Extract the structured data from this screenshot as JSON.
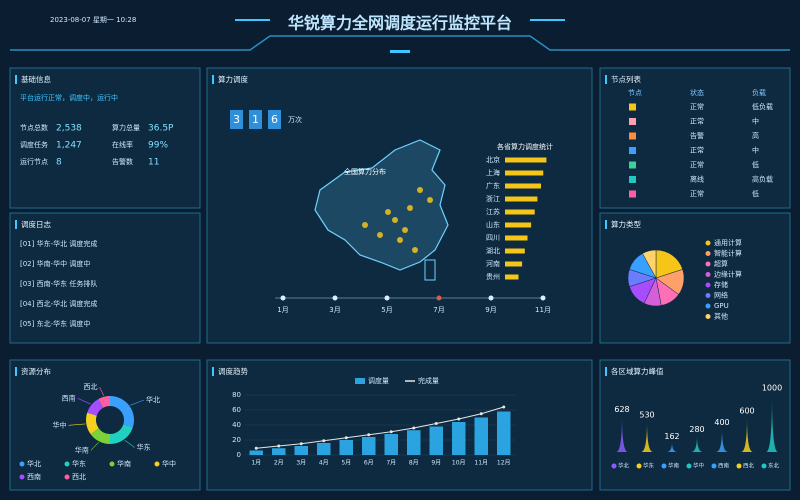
{
  "header": {
    "title": "华锐算力全网调度运行监控平台",
    "datetime": "2023-08-07 星期一 10:28"
  },
  "panels": [
    {
      "title": "基础信息"
    },
    {
      "title": "调度日志"
    },
    {
      "title": "资源分布"
    },
    {
      "title": "算力调度"
    },
    {
      "title": "调度趋势"
    },
    {
      "title": "节点列表"
    },
    {
      "title": "算力类型"
    },
    {
      "title": "各区域算力峰值"
    }
  ],
  "basic": {
    "note": "平台运行正常，调度中，运行中",
    "items": [
      {
        "label": "节点总数",
        "value": "2,538"
      },
      {
        "label": "算力总量",
        "value": "36.5P"
      },
      {
        "label": "调度任务",
        "value": "1,247"
      },
      {
        "label": "在线率",
        "value": "99%"
      },
      {
        "label": "运行节点",
        "value": "8"
      },
      {
        "label": "告警数",
        "value": "11"
      }
    ]
  },
  "logs": [
    "[01] 华东-华北 调度完成",
    "[02] 华南-华中 调度中",
    "[03] 西南-华东 任务排队",
    "[04] 西北-华北 调度完成",
    "[05] 东北-华东 调度中"
  ],
  "dispatch": {
    "counter": [
      "3",
      "1",
      "6"
    ],
    "unit": "万次",
    "map_title": "全国算力分布",
    "timeline": [
      "1月",
      "3月",
      "5月",
      "7月",
      "9月",
      "11月"
    ]
  },
  "nodes": {
    "columns": [
      "节点",
      "状态",
      "负载"
    ],
    "rows": [
      [
        "正常",
        "低负载"
      ],
      [
        "正常",
        "中"
      ],
      [
        "告警",
        "高"
      ],
      [
        "正常",
        "中"
      ],
      [
        "正常",
        "低"
      ],
      [
        "离线",
        "高负载"
      ],
      [
        "正常",
        "低"
      ]
    ],
    "colors": [
      "#f5c518",
      "#ff9fb0",
      "#ff8c3a",
      "#3aa0ff",
      "#3ad19a",
      "#20c8c0",
      "#ff5fa0"
    ]
  },
  "chart_data": [
    {
      "type": "donut",
      "categories": [
        "华北",
        "华东",
        "华南",
        "华中",
        "西南",
        "西北"
      ],
      "values": [
        30,
        20,
        15,
        15,
        12,
        8
      ],
      "colors": [
        "#3aa0ff",
        "#20d0c0",
        "#7ad13a",
        "#f5d020",
        "#a64dff",
        "#ff5fa0"
      ]
    },
    {
      "type": "combo",
      "categories": [
        "1月",
        "2月",
        "3月",
        "4月",
        "5月",
        "6月",
        "7月",
        "8月",
        "9月",
        "10月",
        "11月",
        "12月"
      ],
      "ylim": [
        0,
        80
      ],
      "yticks": [
        0,
        20,
        40,
        60,
        80
      ],
      "series": [
        {
          "name": "调度量",
          "type": "bar",
          "color": "#2aa3e0",
          "values": [
            6,
            9,
            12,
            16,
            20,
            24,
            28,
            33,
            38,
            44,
            50,
            58
          ]
        },
        {
          "name": "完成量",
          "type": "line",
          "color": "#e6e6e6",
          "values": [
            9,
            12,
            15,
            19,
            23,
            27,
            31,
            36,
            42,
            48,
            55,
            64
          ]
        }
      ]
    },
    {
      "type": "pie",
      "categories": [
        "通用计算",
        "智能计算",
        "超算",
        "边缘计算",
        "存储",
        "网络",
        "GPU",
        "其他"
      ],
      "values": [
        20,
        15,
        12,
        10,
        13,
        10,
        12,
        8
      ],
      "colors": [
        "#f5c518",
        "#ff9f6a",
        "#ff6fb5",
        "#d45fd8",
        "#a64dff",
        "#6a7dff",
        "#3aa0ff",
        "#ffd36a"
      ]
    },
    {
      "type": "spike",
      "categories": [
        "华北",
        "华东",
        "华南",
        "华中",
        "西南",
        "西北",
        "东北"
      ],
      "values": [
        628,
        530,
        162,
        280,
        400,
        600,
        1000
      ],
      "ylim": [
        0,
        1100
      ],
      "colors": [
        "#8a5cff",
        "#f5d020",
        "#3aa0ff",
        "#20c8c0",
        "#3aa0ff",
        "#f5d020",
        "#20c8c0"
      ]
    },
    {
      "type": "hbar",
      "title": "各省算力调度统计",
      "categories": [
        "北京",
        "上海",
        "广东",
        "浙江",
        "江苏",
        "山东",
        "四川",
        "湖北",
        "河南",
        "贵州"
      ],
      "values": [
        92,
        85,
        80,
        72,
        66,
        58,
        50,
        44,
        38,
        30
      ],
      "xlim": [
        0,
        100
      ],
      "color": "#f5c518"
    }
  ]
}
